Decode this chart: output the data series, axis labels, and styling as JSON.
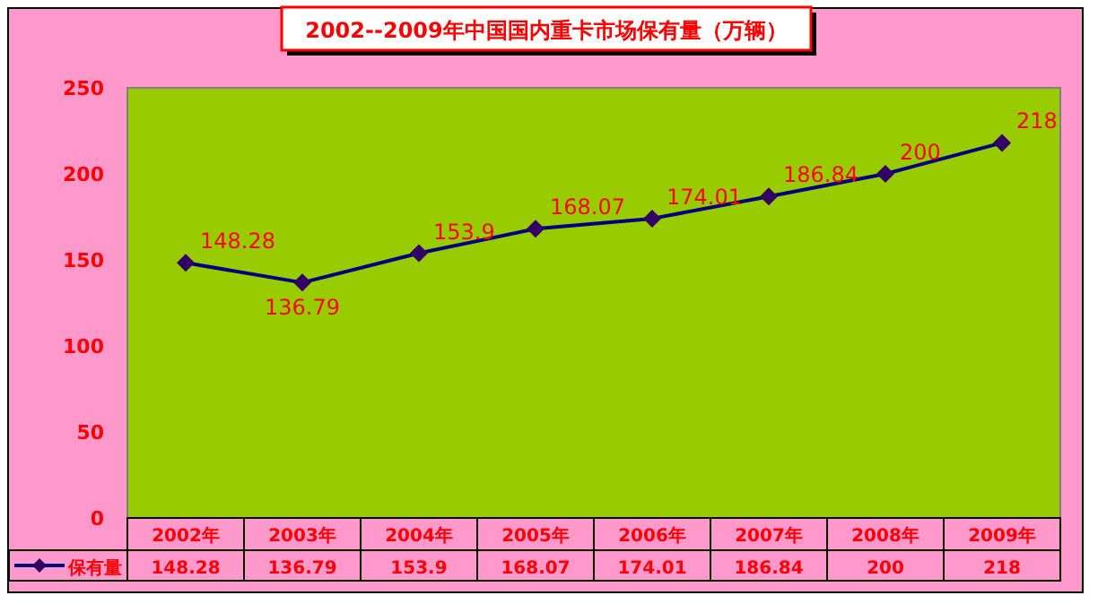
{
  "chart_data": {
    "type": "line",
    "title": "2002--2009年中国国内重卡市场保有量（万辆）",
    "categories": [
      "2002年",
      "2003年",
      "2004年",
      "2005年",
      "2006年",
      "2007年",
      "2008年",
      "2009年"
    ],
    "series": [
      {
        "name": "保有量",
        "color": "#000080",
        "values": [
          148.28,
          136.79,
          153.9,
          168.07,
          174.01,
          186.84,
          200,
          218
        ],
        "value_labels": [
          "148.28",
          "136.79",
          "153.9",
          "168.07",
          "174.01",
          "186.84",
          "200",
          "218"
        ]
      }
    ],
    "ylim": [
      0,
      250
    ],
    "yticks": [
      0,
      50,
      100,
      150,
      200,
      250
    ],
    "grid": false,
    "marker": "diamond",
    "line_style": "solid",
    "annotations": [
      "148.28",
      "136.79",
      "153.9",
      "168.07",
      "174.01",
      "186.84",
      "200",
      "218"
    ],
    "legend": "bottom"
  }
}
